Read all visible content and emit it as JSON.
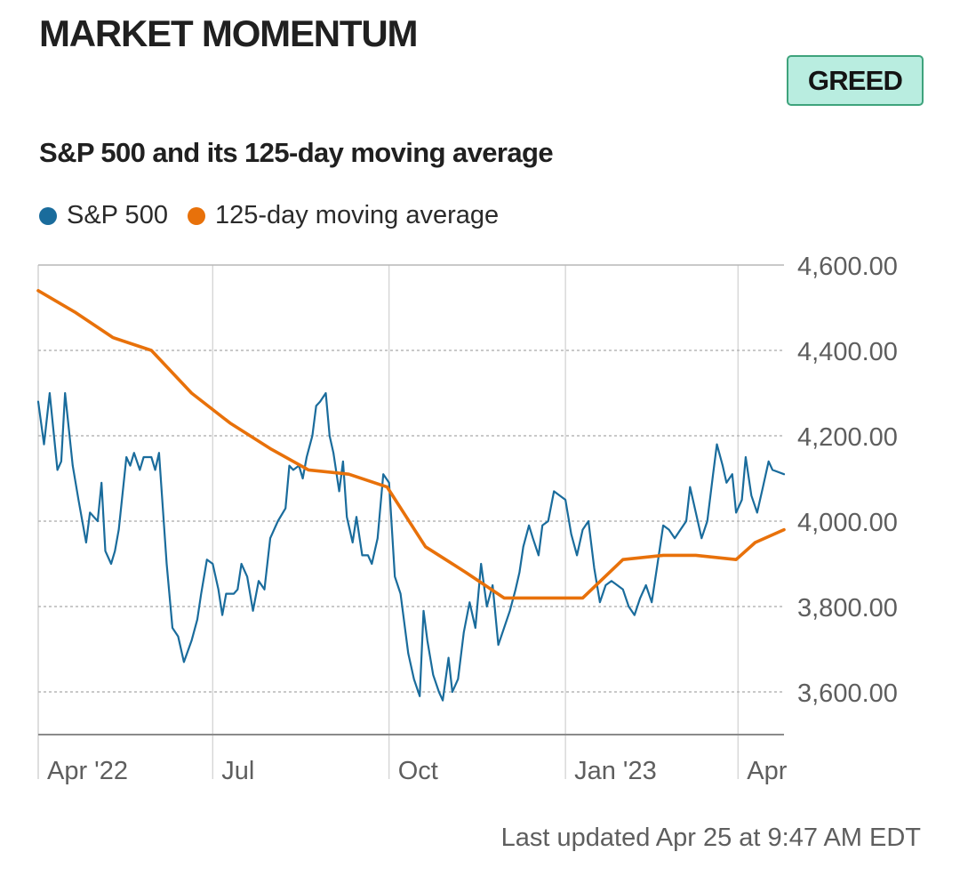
{
  "header": {
    "title": "MARKET MOMENTUM",
    "badge": "GREED"
  },
  "colors": {
    "sp500": "#1a6c9c",
    "moving_average": "#e8710a",
    "badge_bg": "#b9ede0",
    "badge_border": "#3ea37c"
  },
  "footer": {
    "last_updated": "Last updated Apr 25 at 9:47 AM EDT"
  },
  "chart_data": {
    "type": "line",
    "title": "S&P 500 and its 125-day moving average",
    "xlabel": "",
    "ylabel": "",
    "ylim": [
      3500,
      4600
    ],
    "x_range": [
      "2022-04-01",
      "2023-04-25"
    ],
    "y_ticks": [
      3600,
      3800,
      4000,
      4200,
      4400,
      4600
    ],
    "y_tick_labels": [
      "3,600.00",
      "3,800.00",
      "4,000.00",
      "4,200.00",
      "4,400.00",
      "4,600.00"
    ],
    "x_ticks": [
      {
        "date": "2022-04-01",
        "label": "Apr '22"
      },
      {
        "date": "2022-07-01",
        "label": "Jul"
      },
      {
        "date": "2022-10-01",
        "label": "Oct"
      },
      {
        "date": "2023-01-01",
        "label": "Jan '23"
      },
      {
        "date": "2023-04-01",
        "label": "Apr"
      }
    ],
    "grid": true,
    "legend_position": "top-left",
    "series": [
      {
        "name": "S&P 500",
        "color": "#1a6c9c",
        "points": [
          [
            "2022-04-01",
            4280
          ],
          [
            "2022-04-04",
            4180
          ],
          [
            "2022-04-07",
            4300
          ],
          [
            "2022-04-11",
            4120
          ],
          [
            "2022-04-13",
            4140
          ],
          [
            "2022-04-15",
            4300
          ],
          [
            "2022-04-19",
            4130
          ],
          [
            "2022-04-22",
            4050
          ],
          [
            "2022-04-26",
            3950
          ],
          [
            "2022-04-28",
            4020
          ],
          [
            "2022-05-02",
            4000
          ],
          [
            "2022-05-04",
            4090
          ],
          [
            "2022-05-06",
            3930
          ],
          [
            "2022-05-09",
            3900
          ],
          [
            "2022-05-11",
            3930
          ],
          [
            "2022-05-13",
            3980
          ],
          [
            "2022-05-17",
            4150
          ],
          [
            "2022-05-19",
            4130
          ],
          [
            "2022-05-21",
            4160
          ],
          [
            "2022-05-24",
            4120
          ],
          [
            "2022-05-26",
            4150
          ],
          [
            "2022-05-30",
            4150
          ],
          [
            "2022-06-01",
            4120
          ],
          [
            "2022-06-03",
            4160
          ],
          [
            "2022-06-07",
            3900
          ],
          [
            "2022-06-10",
            3750
          ],
          [
            "2022-06-13",
            3730
          ],
          [
            "2022-06-16",
            3670
          ],
          [
            "2022-06-20",
            3720
          ],
          [
            "2022-06-23",
            3770
          ],
          [
            "2022-06-25",
            3830
          ],
          [
            "2022-06-28",
            3910
          ],
          [
            "2022-07-01",
            3900
          ],
          [
            "2022-07-04",
            3840
          ],
          [
            "2022-07-06",
            3780
          ],
          [
            "2022-07-08",
            3830
          ],
          [
            "2022-07-12",
            3830
          ],
          [
            "2022-07-14",
            3840
          ],
          [
            "2022-07-16",
            3900
          ],
          [
            "2022-07-19",
            3870
          ],
          [
            "2022-07-22",
            3790
          ],
          [
            "2022-07-25",
            3860
          ],
          [
            "2022-07-28",
            3840
          ],
          [
            "2022-07-31",
            3960
          ],
          [
            "2022-08-04",
            4000
          ],
          [
            "2022-08-08",
            4030
          ],
          [
            "2022-08-10",
            4130
          ],
          [
            "2022-08-12",
            4120
          ],
          [
            "2022-08-15",
            4130
          ],
          [
            "2022-08-17",
            4100
          ],
          [
            "2022-08-19",
            4150
          ],
          [
            "2022-08-22",
            4200
          ],
          [
            "2022-08-24",
            4270
          ],
          [
            "2022-08-26",
            4280
          ],
          [
            "2022-08-29",
            4300
          ],
          [
            "2022-08-31",
            4200
          ],
          [
            "2022-09-02",
            4160
          ],
          [
            "2022-09-05",
            4070
          ],
          [
            "2022-09-07",
            4140
          ],
          [
            "2022-09-09",
            4010
          ],
          [
            "2022-09-12",
            3950
          ],
          [
            "2022-09-14",
            4010
          ],
          [
            "2022-09-17",
            3920
          ],
          [
            "2022-09-20",
            3920
          ],
          [
            "2022-09-22",
            3900
          ],
          [
            "2022-09-25",
            3960
          ],
          [
            "2022-09-28",
            4110
          ],
          [
            "2022-10-01",
            4090
          ],
          [
            "2022-10-04",
            3870
          ],
          [
            "2022-10-07",
            3830
          ],
          [
            "2022-10-11",
            3690
          ],
          [
            "2022-10-14",
            3630
          ],
          [
            "2022-10-17",
            3590
          ],
          [
            "2022-10-19",
            3790
          ],
          [
            "2022-10-21",
            3720
          ],
          [
            "2022-10-24",
            3640
          ],
          [
            "2022-10-27",
            3600
          ],
          [
            "2022-10-29",
            3580
          ],
          [
            "2022-11-01",
            3680
          ],
          [
            "2022-11-03",
            3600
          ],
          [
            "2022-11-06",
            3630
          ],
          [
            "2022-11-09",
            3740
          ],
          [
            "2022-11-12",
            3810
          ],
          [
            "2022-11-15",
            3750
          ],
          [
            "2022-11-18",
            3900
          ],
          [
            "2022-11-21",
            3800
          ],
          [
            "2022-11-24",
            3850
          ],
          [
            "2022-11-27",
            3710
          ],
          [
            "2022-11-30",
            3750
          ],
          [
            "2022-12-03",
            3790
          ],
          [
            "2022-12-06",
            3840
          ],
          [
            "2022-12-08",
            3880
          ],
          [
            "2022-12-10",
            3940
          ],
          [
            "2022-12-13",
            3990
          ],
          [
            "2022-12-15",
            3960
          ],
          [
            "2022-12-18",
            3920
          ],
          [
            "2022-12-20",
            3990
          ],
          [
            "2022-12-23",
            4000
          ],
          [
            "2022-12-26",
            4070
          ],
          [
            "2022-12-29",
            4060
          ],
          [
            "2023-01-01",
            4050
          ],
          [
            "2023-01-04",
            3970
          ],
          [
            "2023-01-07",
            3920
          ],
          [
            "2023-01-10",
            3980
          ],
          [
            "2023-01-13",
            4000
          ],
          [
            "2023-01-16",
            3890
          ],
          [
            "2023-01-19",
            3810
          ],
          [
            "2023-01-22",
            3850
          ],
          [
            "2023-01-25",
            3860
          ],
          [
            "2023-01-28",
            3850
          ],
          [
            "2023-01-31",
            3840
          ],
          [
            "2023-02-03",
            3800
          ],
          [
            "2023-02-06",
            3780
          ],
          [
            "2023-02-09",
            3820
          ],
          [
            "2023-02-12",
            3850
          ],
          [
            "2023-02-15",
            3810
          ],
          [
            "2023-02-18",
            3900
          ],
          [
            "2023-02-21",
            3990
          ],
          [
            "2023-02-24",
            3980
          ],
          [
            "2023-02-27",
            3960
          ],
          [
            "2023-03-02",
            3980
          ],
          [
            "2023-03-05",
            4000
          ],
          [
            "2023-03-07",
            4080
          ],
          [
            "2023-03-10",
            4020
          ],
          [
            "2023-03-13",
            3960
          ],
          [
            "2023-03-16",
            4000
          ],
          [
            "2023-03-19",
            4110
          ],
          [
            "2023-03-21",
            4180
          ],
          [
            "2023-03-24",
            4130
          ],
          [
            "2023-03-26",
            4090
          ],
          [
            "2023-03-29",
            4110
          ],
          [
            "2023-03-31",
            4020
          ],
          [
            "2023-04-03",
            4050
          ],
          [
            "2023-04-05",
            4150
          ],
          [
            "2023-04-08",
            4060
          ],
          [
            "2023-04-11",
            4020
          ],
          [
            "2023-04-14",
            4080
          ],
          [
            "2023-04-17",
            4140
          ],
          [
            "2023-04-19",
            4120
          ],
          [
            "2023-04-25",
            4110
          ]
        ]
      },
      {
        "name": "125-day moving average",
        "color": "#e8710a",
        "points": [
          [
            "2022-04-01",
            4540
          ],
          [
            "2022-04-20",
            4490
          ],
          [
            "2022-05-10",
            4430
          ],
          [
            "2022-05-30",
            4400
          ],
          [
            "2022-06-20",
            4300
          ],
          [
            "2022-07-10",
            4230
          ],
          [
            "2022-07-31",
            4170
          ],
          [
            "2022-08-20",
            4120
          ],
          [
            "2022-09-10",
            4110
          ],
          [
            "2022-09-30",
            4080
          ],
          [
            "2022-10-20",
            3940
          ],
          [
            "2022-11-10",
            3880
          ],
          [
            "2022-11-30",
            3820
          ],
          [
            "2022-12-20",
            3820
          ],
          [
            "2023-01-10",
            3820
          ],
          [
            "2023-01-31",
            3910
          ],
          [
            "2023-02-21",
            3920
          ],
          [
            "2023-03-10",
            3920
          ],
          [
            "2023-03-31",
            3910
          ],
          [
            "2023-04-10",
            3950
          ],
          [
            "2023-04-25",
            3980
          ]
        ]
      }
    ]
  }
}
